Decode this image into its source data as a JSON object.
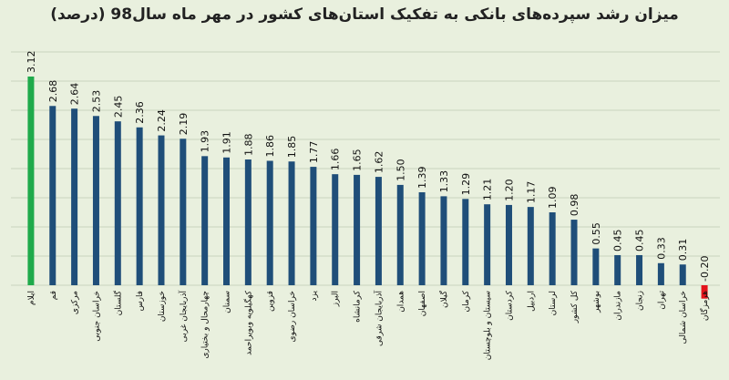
{
  "chart_data": {
    "type": "bar",
    "title": "میزان رشد سپرده‌های بانکی به تفکیک استان‌های کشور در مهر ماه سال98 (درصد)",
    "xlabel": "",
    "ylabel": "",
    "ylim": [
      -0.2,
      3.2
    ],
    "grid": true,
    "categories": [
      "ایلام",
      "قم",
      "مرکزی",
      "خراسان جنوبی",
      "گلستان",
      "فارس",
      "خوزستان",
      "آذربایجان غربی",
      "چهارمحال و بختیاری",
      "سمنان",
      "کهگیلویه وبویراحمد",
      "قزوین",
      "خراسان رضوی",
      "یزد",
      "البرز",
      "کرمانشاه",
      "آذربایجان شرقی",
      "همدان",
      "اصفهان",
      "گیلان",
      "کرمان",
      "سیستان و بلوچستان",
      "کردستان",
      "اردبیل",
      "لرستان",
      "کل کشور",
      "بوشهر",
      "مازندران",
      "زنجان",
      "تهران",
      "خراسان شمالی",
      "هرمزگان"
    ],
    "values": [
      3.12,
      2.68,
      2.64,
      2.53,
      2.45,
      2.36,
      2.24,
      2.19,
      1.93,
      1.91,
      1.88,
      1.86,
      1.85,
      1.77,
      1.66,
      1.65,
      1.62,
      1.5,
      1.39,
      1.33,
      1.29,
      1.21,
      1.2,
      1.17,
      1.09,
      0.98,
      0.55,
      0.45,
      0.45,
      0.33,
      0.31,
      -0.2
    ],
    "value_labels": [
      "3.12",
      "2.68",
      "2.64",
      "2.53",
      "2.45",
      "2.36",
      "2.24",
      "2.19",
      "1.93",
      "1.91",
      "1.88",
      "1.86",
      "1.85",
      "1.77",
      "1.66",
      "1.65",
      "1.62",
      "1.50",
      "1.39",
      "1.33",
      "1.29",
      "1.21",
      "1.20",
      "1.17",
      "1.09",
      "0.98",
      "0.55",
      "0.45",
      "0.45",
      "0.33",
      "0.31",
      "-0.20"
    ],
    "colors": {
      "default": "#1f4e79",
      "max": "#1faa4b",
      "negative": "#e3131b",
      "grid": "#c9d3bd",
      "background": "#e9f0de"
    }
  }
}
